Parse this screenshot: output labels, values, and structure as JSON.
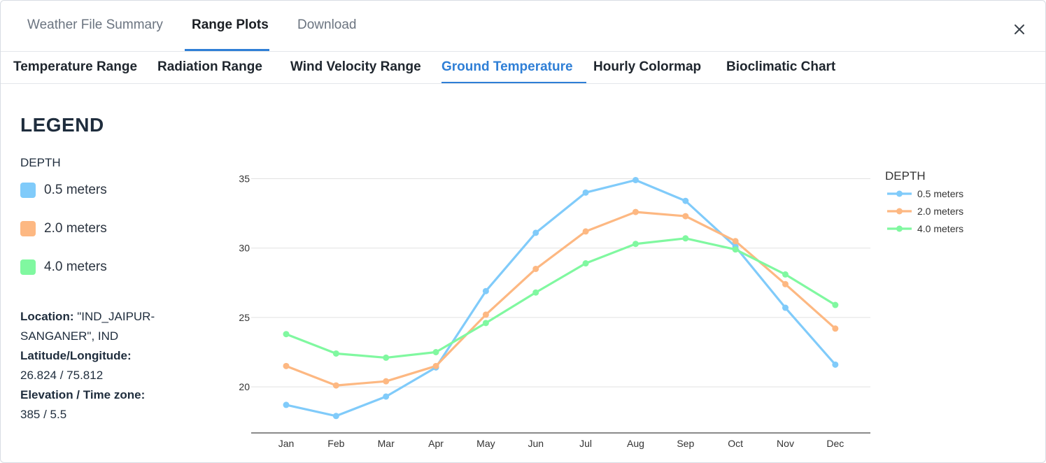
{
  "top_tabs": [
    {
      "label": "Weather File Summary",
      "active": false
    },
    {
      "label": "Range Plots",
      "active": true
    },
    {
      "label": "Download",
      "active": false
    }
  ],
  "sub_tabs": [
    {
      "label": "Temperature Range",
      "active": false
    },
    {
      "label": "Radiation Range",
      "active": false
    },
    {
      "label": "Wind Velocity Range",
      "active": false
    },
    {
      "label": "Ground Temperature",
      "active": true
    },
    {
      "label": "Hourly Colormap",
      "active": false
    },
    {
      "label": "Bioclimatic Chart",
      "active": false
    }
  ],
  "legend": {
    "title": "LEGEND",
    "subtitle": "DEPTH",
    "items": [
      {
        "label": "0.5 meters",
        "color": "#80cbfa"
      },
      {
        "label": "2.0 meters",
        "color": "#fdb882"
      },
      {
        "label": "4.0 meters",
        "color": "#80f8a0"
      }
    ]
  },
  "info": {
    "location_label": "Location:",
    "location_value": "\"IND_JAIPUR-SANGANER\", IND",
    "latlon_label": "Latitude/Longitude:",
    "latlon_value": "26.824 / 75.812",
    "elev_label": "Elevation / Time zone:",
    "elev_value": "385 / 5.5"
  },
  "colors": {
    "accent": "#2f7fd6"
  },
  "chart_data": {
    "type": "line",
    "categories": [
      "Jan",
      "Feb",
      "Mar",
      "Apr",
      "May",
      "Jun",
      "Jul",
      "Aug",
      "Sep",
      "Oct",
      "Nov",
      "Dec"
    ],
    "series": [
      {
        "name": "0.5 meters",
        "color": "#80cbfa",
        "values": [
          18.7,
          17.9,
          19.3,
          21.4,
          26.9,
          31.1,
          34.0,
          34.9,
          33.4,
          30.1,
          25.7,
          21.6
        ]
      },
      {
        "name": "2.0 meters",
        "color": "#fdb882",
        "values": [
          21.5,
          20.1,
          20.4,
          21.5,
          25.2,
          28.5,
          31.2,
          32.6,
          32.3,
          30.5,
          27.4,
          24.2
        ]
      },
      {
        "name": "4.0 meters",
        "color": "#80f8a0",
        "values": [
          23.8,
          22.4,
          22.1,
          22.5,
          24.6,
          26.8,
          28.9,
          30.3,
          30.7,
          29.9,
          28.1,
          25.9
        ]
      }
    ],
    "yticks": [
      20,
      25,
      30,
      35
    ],
    "ylim": [
      16.8,
      35.9
    ],
    "legend_title": "DEPTH",
    "legend_position": "top-right",
    "grid": true
  }
}
